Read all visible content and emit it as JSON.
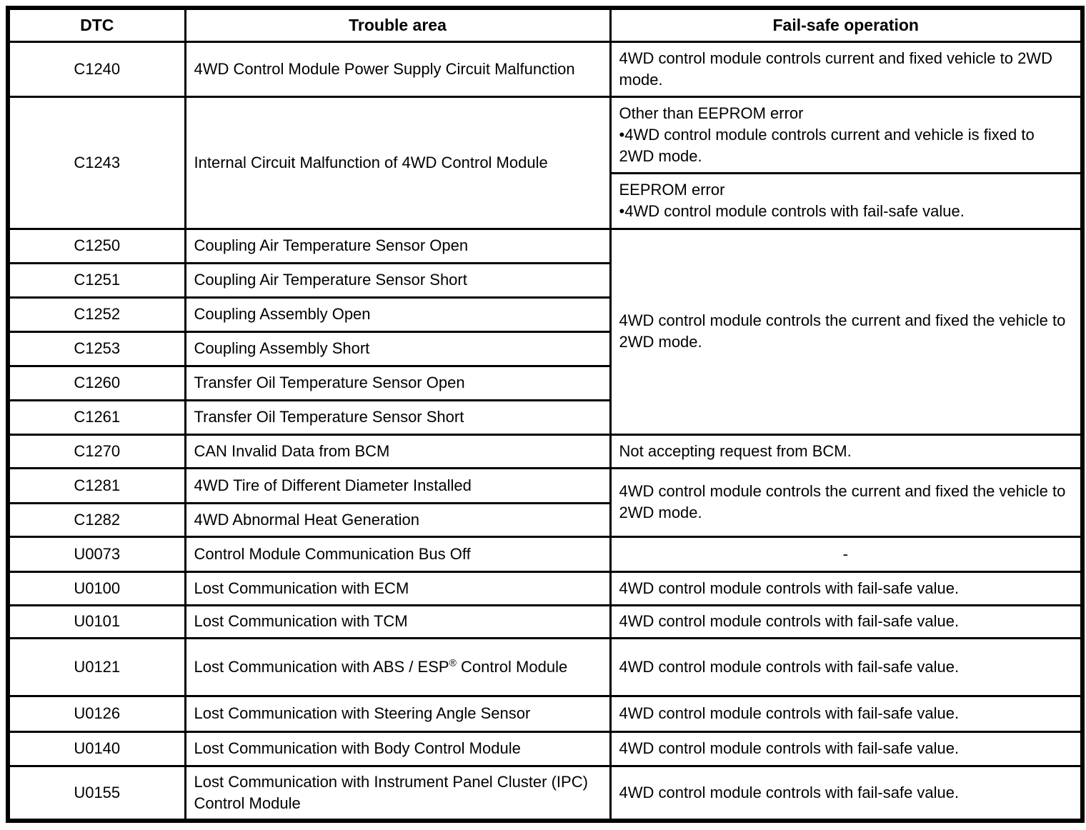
{
  "table": {
    "headers": {
      "dtc": "DTC",
      "trouble": "Trouble area",
      "failsafe": "Fail-safe operation"
    },
    "rows": {
      "c1240": {
        "dtc": "C1240",
        "trouble": "4WD Control Module Power Supply Circuit Malfunction",
        "failsafe": "4WD control module controls current and fixed vehicle to 2WD mode."
      },
      "c1243": {
        "dtc": "C1243",
        "trouble": "Internal Circuit Malfunction of 4WD Control Module",
        "failsafe_other_title": "Other than EEPROM error",
        "failsafe_other_detail": "•4WD control module controls current and vehicle is fixed to 2WD mode.",
        "failsafe_eeprom_title": "EEPROM error",
        "failsafe_eeprom_detail": "•4WD control module controls with fail-safe value."
      },
      "c1250": {
        "dtc": "C1250",
        "trouble": "Coupling Air Temperature Sensor Open"
      },
      "c1251": {
        "dtc": "C1251",
        "trouble": "Coupling Air Temperature Sensor Short"
      },
      "c1252": {
        "dtc": "C1252",
        "trouble": "Coupling Assembly Open"
      },
      "c1253": {
        "dtc": "C1253",
        "trouble": "Coupling Assembly Short"
      },
      "c1260": {
        "dtc": "C1260",
        "trouble": "Transfer Oil Temperature Sensor Open"
      },
      "c1261": {
        "dtc": "C1261",
        "trouble": "Transfer Oil Temperature Sensor Short"
      },
      "c1250_group_failsafe": "4WD control module controls the current and fixed the vehicle to 2WD mode.",
      "c1270": {
        "dtc": "C1270",
        "trouble": "CAN Invalid Data from BCM",
        "failsafe": "Not accepting request from BCM."
      },
      "c1281": {
        "dtc": "C1281",
        "trouble": "4WD Tire of Different Diameter Installed"
      },
      "c1282": {
        "dtc": "C1282",
        "trouble": "4WD Abnormal Heat Generation"
      },
      "c1281_group_failsafe": "4WD control module controls the current and fixed the vehicle to 2WD mode.",
      "u0073": {
        "dtc": "U0073",
        "trouble": "Control Module Communication Bus Off",
        "failsafe": "-"
      },
      "u0100": {
        "dtc": "U0100",
        "trouble": "Lost Communication with ECM",
        "failsafe": "4WD control module controls with fail-safe value."
      },
      "u0101": {
        "dtc": "U0101",
        "trouble": "Lost Communication with TCM",
        "failsafe": "4WD control module controls with fail-safe value."
      },
      "u0121": {
        "dtc": "U0121",
        "trouble_pre": "Lost Communication with ABS / ESP",
        "trouble_sup": "®",
        "trouble_post": " Control Module",
        "failsafe": "4WD control module controls with fail-safe value."
      },
      "u0126": {
        "dtc": "U0126",
        "trouble": "Lost Communication with Steering Angle Sensor",
        "failsafe": "4WD control module controls with fail-safe value."
      },
      "u0140": {
        "dtc": "U0140",
        "trouble": "Lost Communication with Body Control Module",
        "failsafe": "4WD control module controls with fail-safe value."
      },
      "u0155": {
        "dtc": "U0155",
        "trouble": "Lost Communication with Instrument Panel Cluster (IPC) Control Module",
        "failsafe": "4WD control module controls with fail-safe value."
      }
    },
    "colors": {
      "border": "#000000",
      "text": "#000000",
      "background": "#ffffff"
    }
  }
}
